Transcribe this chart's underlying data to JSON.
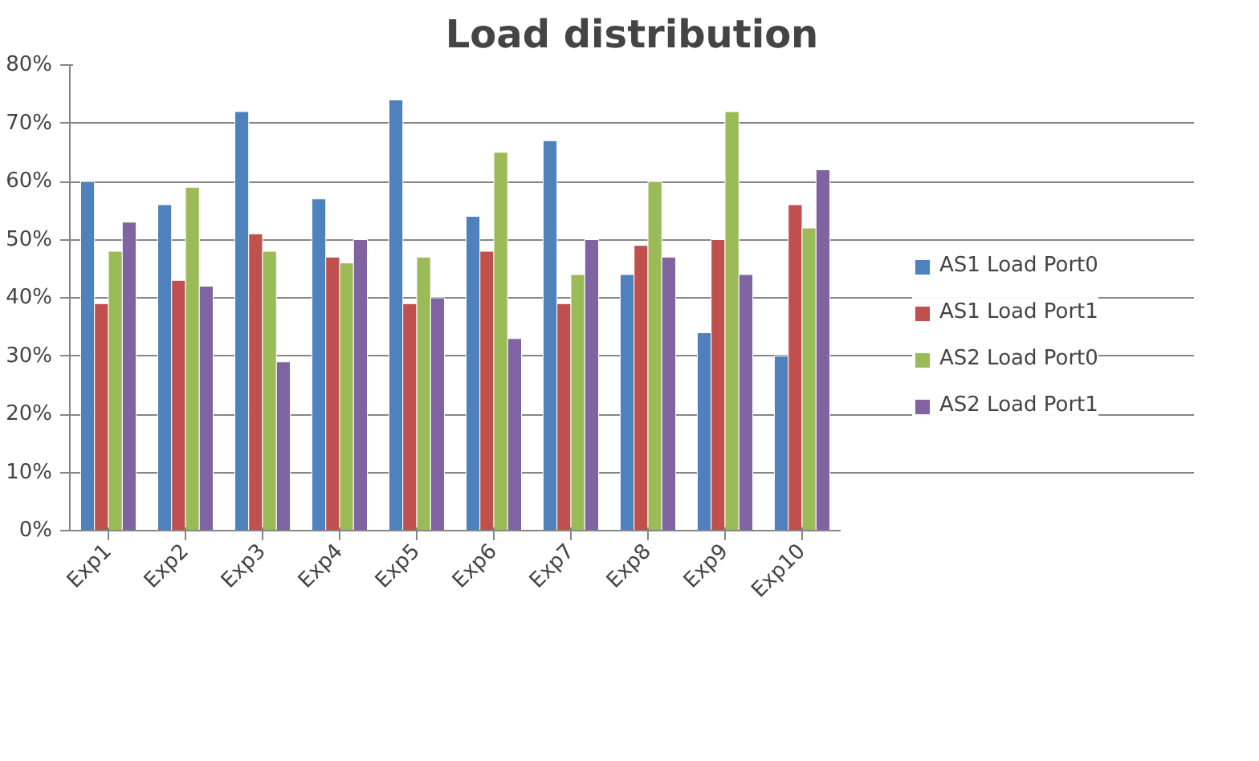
{
  "chart_data": {
    "type": "bar",
    "title": "Load distribution",
    "categories": [
      "Exp1",
      "Exp2",
      "Exp3",
      "Exp4",
      "Exp5",
      "Exp6",
      "Exp7",
      "Exp8",
      "Exp9",
      "Exp10"
    ],
    "series": [
      {
        "name": "AS1 Load Port0",
        "color": "#4f81bd",
        "values": [
          60,
          56,
          72,
          57,
          74,
          54,
          67,
          44,
          34,
          30
        ]
      },
      {
        "name": "AS1 Load Port1",
        "color": "#c0504d",
        "values": [
          39,
          43,
          51,
          47,
          39,
          48,
          39,
          49,
          50,
          56
        ]
      },
      {
        "name": "AS2 Load Port0",
        "color": "#9bbb59",
        "values": [
          48,
          59,
          48,
          46,
          47,
          65,
          44,
          60,
          72,
          52
        ]
      },
      {
        "name": "AS2 Load Port1",
        "color": "#8064a2",
        "values": [
          53,
          42,
          29,
          50,
          40,
          33,
          50,
          47,
          44,
          62
        ]
      }
    ],
    "ylim": [
      0,
      80
    ],
    "yticks": [
      {
        "value": 0,
        "label": "0%"
      },
      {
        "value": 10,
        "label": "10%"
      },
      {
        "value": 20,
        "label": "20%"
      },
      {
        "value": 30,
        "label": "30%"
      },
      {
        "value": 40,
        "label": "40%"
      },
      {
        "value": 50,
        "label": "50%"
      },
      {
        "value": 60,
        "label": "60%"
      },
      {
        "value": 70,
        "label": "70%"
      },
      {
        "value": 80,
        "label": "80%"
      }
    ],
    "grid": "y",
    "legend": "right"
  }
}
